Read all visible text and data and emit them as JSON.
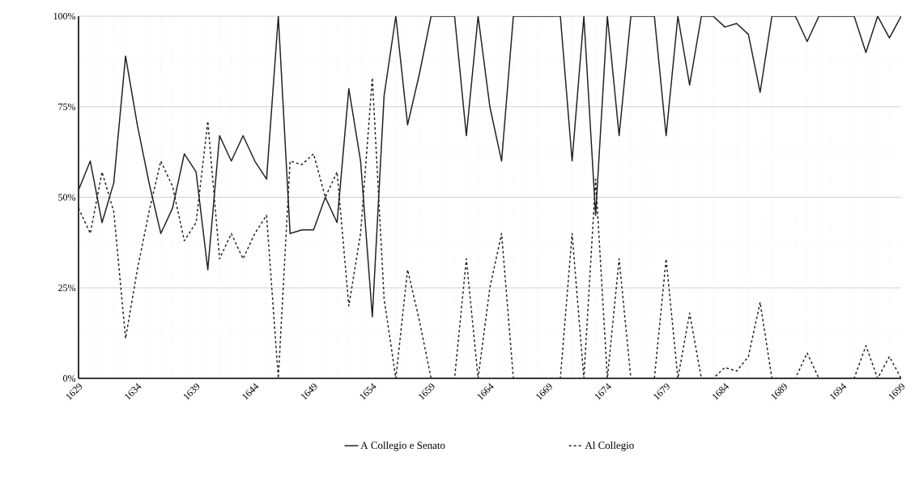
{
  "chart_data": {
    "type": "line",
    "x": [
      1629,
      1630,
      1631,
      1632,
      1633,
      1634,
      1635,
      1636,
      1637,
      1638,
      1639,
      1640,
      1641,
      1642,
      1643,
      1644,
      1645,
      1646,
      1647,
      1648,
      1649,
      1650,
      1651,
      1652,
      1653,
      1654,
      1655,
      1656,
      1657,
      1658,
      1659,
      1660,
      1661,
      1662,
      1663,
      1664,
      1665,
      1666,
      1667,
      1668,
      1669,
      1670,
      1671,
      1672,
      1673,
      1674,
      1675,
      1676,
      1677,
      1678,
      1679,
      1680,
      1681,
      1682,
      1683,
      1684,
      1685,
      1686,
      1687,
      1688,
      1689,
      1690,
      1691,
      1692,
      1693,
      1694,
      1695,
      1696,
      1697,
      1698,
      1699
    ],
    "series": [
      {
        "name": "A Collegio e Senato",
        "color": "#222222",
        "line_style": "solid",
        "values": [
          52,
          60,
          43,
          54,
          89,
          70,
          54,
          40,
          47,
          62,
          57,
          30,
          67,
          60,
          67,
          60,
          55,
          100,
          40,
          41,
          41,
          50,
          43,
          80,
          60,
          17,
          78,
          100,
          70,
          84,
          100,
          100,
          100,
          67,
          100,
          75,
          60,
          100,
          100,
          100,
          100,
          100,
          60,
          100,
          45,
          100,
          67,
          100,
          100,
          100,
          67,
          100,
          81,
          100,
          100,
          97,
          98,
          95,
          79,
          100,
          100,
          100,
          93,
          100,
          100,
          100,
          100,
          90,
          100,
          94,
          100
        ]
      },
      {
        "name": "Al Collegio",
        "color": "#222222",
        "line_style": "dashed",
        "values": [
          47,
          40,
          57,
          46,
          11,
          30,
          46,
          60,
          53,
          38,
          43,
          71,
          33,
          40,
          33,
          40,
          45,
          0,
          60,
          59,
          62,
          50,
          57,
          20,
          40,
          83,
          22,
          0,
          30,
          16,
          0,
          0,
          0,
          33,
          0,
          25,
          40,
          0,
          0,
          0,
          0,
          0,
          40,
          0,
          55,
          0,
          33,
          0,
          0,
          0,
          33,
          0,
          18,
          0,
          0,
          3,
          2,
          6,
          21,
          0,
          0,
          0,
          7,
          0,
          0,
          0,
          0,
          9,
          0,
          6,
          0
        ]
      }
    ],
    "xlim": [
      1629,
      1699
    ],
    "xticks": [
      1629,
      1634,
      1639,
      1644,
      1649,
      1654,
      1659,
      1664,
      1669,
      1674,
      1679,
      1684,
      1689,
      1694,
      1699
    ],
    "ylim": [
      0,
      100
    ],
    "yticks": [
      {
        "value": 0,
        "label": "0%"
      },
      {
        "value": 25,
        "label": "25%"
      },
      {
        "value": 50,
        "label": "50%"
      },
      {
        "value": 75,
        "label": "75%"
      },
      {
        "value": 100,
        "label": "100%"
      }
    ],
    "grid": true,
    "legend": "bottom"
  }
}
